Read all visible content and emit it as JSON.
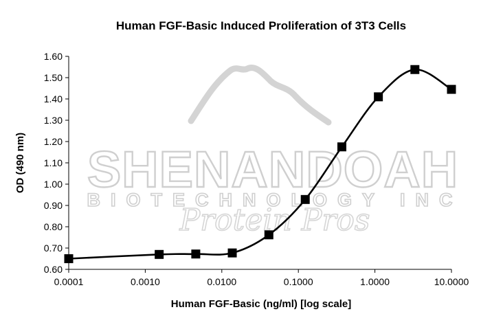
{
  "chart_data": {
    "type": "line",
    "title": "Human FGF-Basic Induced Proliferation of 3T3 Cells",
    "xlabel": "Human FGF-Basic (ng/ml) [log scale]",
    "ylabel": "OD (490 nm)",
    "x_scale": "log",
    "xlim": [
      0.0001,
      10
    ],
    "ylim": [
      0.6,
      1.6
    ],
    "x_ticks": [
      0.0001,
      0.001,
      0.01,
      0.1,
      1,
      10
    ],
    "x_tick_labels": [
      "0.0001",
      "0.0010",
      "0.0100",
      "0.1000",
      "1.0000",
      "10.0000"
    ],
    "y_ticks": [
      0.6,
      0.7,
      0.8,
      0.9,
      1.0,
      1.1,
      1.2,
      1.3,
      1.4,
      1.5,
      1.6
    ],
    "y_tick_labels": [
      "0.60",
      "0.70",
      "0.80",
      "0.90",
      "1.00",
      "1.10",
      "1.20",
      "1.30",
      "1.40",
      "1.50",
      "1.60"
    ],
    "grid": false,
    "legend": "none",
    "marker": "square",
    "series": [
      {
        "x": [
          0.0001,
          0.00152,
          0.00457,
          0.0137,
          0.0412,
          0.123,
          0.37,
          1.11,
          3.33,
          10
        ],
        "values": [
          0.65,
          0.67,
          0.672,
          0.677,
          0.762,
          0.928,
          1.175,
          1.41,
          1.538,
          1.445
        ]
      }
    ],
    "color": "#000000"
  },
  "watermark": {
    "line1": "SHENANDOAH",
    "line2": "BIOTECHNOLOGY INC",
    "line3": "Protein Pros",
    "color": "#cfcfcf"
  }
}
